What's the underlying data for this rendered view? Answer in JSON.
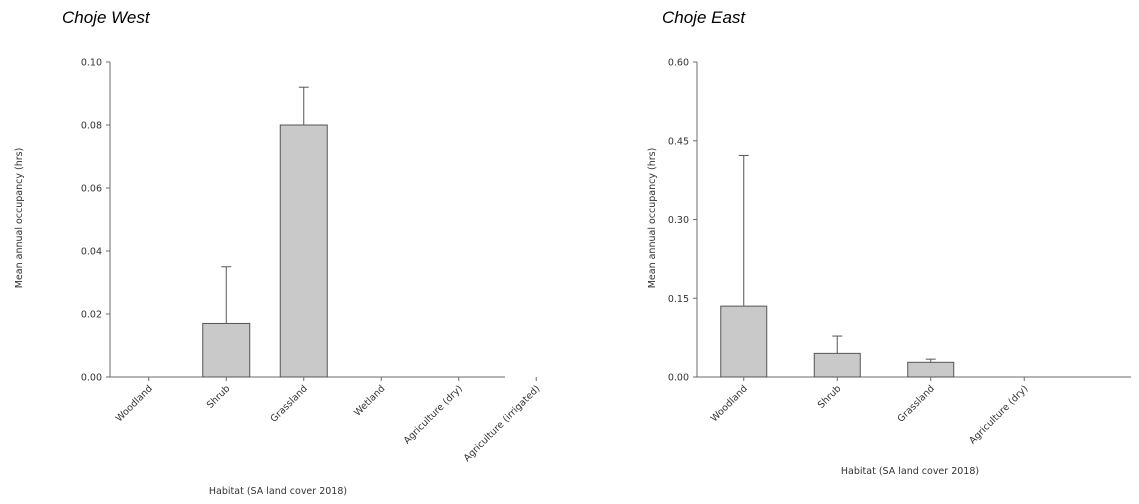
{
  "chart_data": [
    {
      "type": "bar",
      "title": "Choje West",
      "ylabel": "Mean annual occupancy (hrs)",
      "xlabel": "Habitat (SA land cover 2018)",
      "categories": [
        "Woodland",
        "Shrub",
        "Grassland",
        "Wetland",
        "Agriculture (dry)",
        "Agriculture (irrigated)"
      ],
      "values": [
        0,
        0.017,
        0.08,
        0,
        0,
        0
      ],
      "error_upper": [
        0,
        0.035,
        0.092,
        0,
        0,
        0
      ],
      "ylim": [
        0,
        0.1
      ],
      "yticks": [
        "0.00",
        "0.02",
        "0.04",
        "0.06",
        "0.08",
        "0.10"
      ],
      "yticks_values": [
        0,
        0.02,
        0.04,
        0.06,
        0.08,
        0.1
      ],
      "grid": false,
      "bar_color": "#c9c9c9"
    },
    {
      "type": "bar",
      "title": "Choje East",
      "ylabel": "Mean annual occupancy (hrs)",
      "xlabel": "Habitat (SA land cover 2018)",
      "categories": [
        "Woodland",
        "Shrub",
        "Grassland",
        "Agriculture (dry)"
      ],
      "values": [
        0.135,
        0.045,
        0.028,
        0
      ],
      "error_upper": [
        0.422,
        0.078,
        0.034,
        0
      ],
      "ylim": [
        0,
        0.6
      ],
      "yticks": [
        "0.00",
        "0.15",
        "0.30",
        "0.45",
        "0.60"
      ],
      "yticks_values": [
        0,
        0.15,
        0.3,
        0.45,
        0.6
      ],
      "grid": false,
      "bar_color": "#c9c9c9"
    }
  ]
}
